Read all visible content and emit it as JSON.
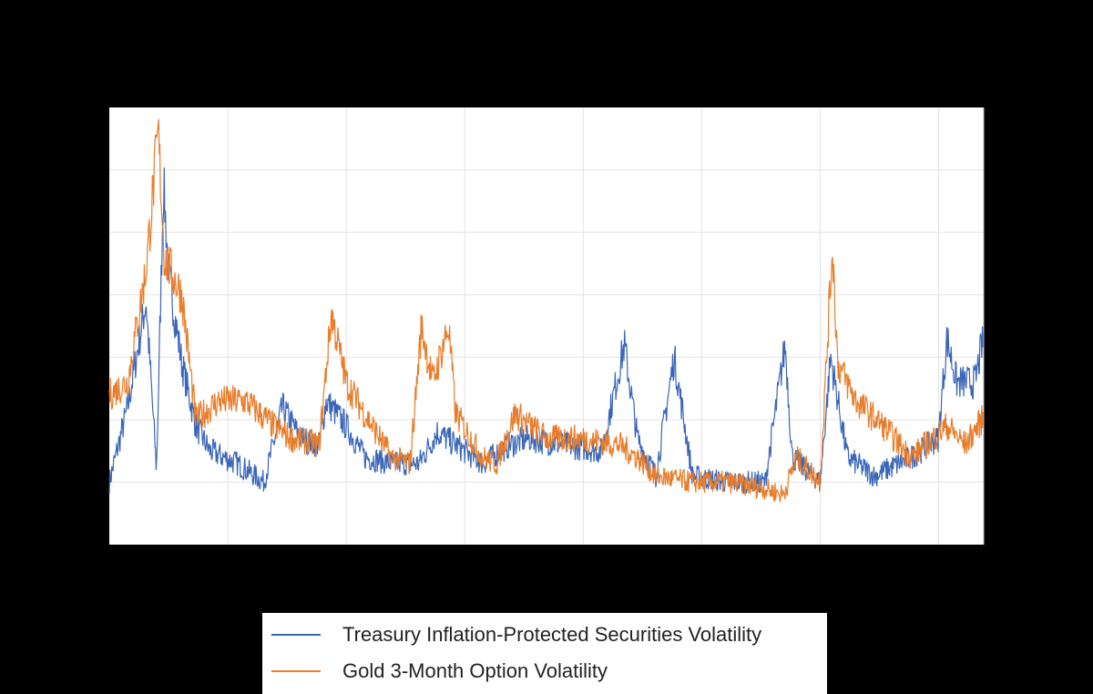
{
  "chart_data": {
    "type": "line",
    "title": "",
    "xlabel": "",
    "ylabel": "",
    "x_units": "percent of period shown",
    "xlim": [
      0,
      100
    ],
    "ylim": [
      0,
      7
    ],
    "grid": true,
    "legend_position": "bottom",
    "series": [
      {
        "name": "Treasury Inflation-Protected Securities Volatility",
        "color": "#3a66b8",
        "x": [
          0,
          2.1,
          4.2,
          5.4,
          6.2,
          6.8,
          8.3,
          9.9,
          11.5,
          14.6,
          17.7,
          19.8,
          21.9,
          24,
          24.8,
          27.1,
          29.2,
          32.3,
          35.4,
          37.5,
          39.6,
          42.7,
          45.8,
          47.9,
          52.1,
          56.3,
          58.9,
          60.4,
          62.5,
          64.6,
          66.7,
          70.8,
          75,
          77.3,
          78.1,
          81.3,
          82.5,
          84.4,
          87.5,
          91.7,
          94.8,
          95.8,
          96.9,
          99,
          99.8
        ],
        "y": [
          1.0,
          2.2,
          3.9,
          1.2,
          5.8,
          4.3,
          2.9,
          1.9,
          1.5,
          1.3,
          1.0,
          2.2,
          1.7,
          1.6,
          2.3,
          1.9,
          1.4,
          1.3,
          1.3,
          1.8,
          1.6,
          1.3,
          1.6,
          1.7,
          1.6,
          1.5,
          3.2,
          1.7,
          1.1,
          3.0,
          1.1,
          1.0,
          1.0,
          3.2,
          1.4,
          1.0,
          3.0,
          1.4,
          1.1,
          1.4,
          1.7,
          3.3,
          2.6,
          2.6,
          3.2
        ]
      },
      {
        "name": "Gold 3-Month Option Volatility",
        "color": "#e87d2b",
        "x": [
          0,
          2.1,
          4.2,
          5.6,
          6.3,
          8.3,
          9.9,
          12.5,
          15.6,
          18.8,
          20.8,
          24,
          25.4,
          27.1,
          29.2,
          32.3,
          34.4,
          35.7,
          37,
          38.8,
          39.6,
          42.7,
          44.3,
          46.4,
          50,
          54.2,
          58.3,
          60.4,
          62.5,
          66.7,
          70.8,
          75,
          77.1,
          78.6,
          81.3,
          82.7,
          83.3,
          85.4,
          88.5,
          91.7,
          95.8,
          97.9,
          99.8
        ],
        "y": [
          2.4,
          2.6,
          4.4,
          6.6,
          4.6,
          4.0,
          2.0,
          2.3,
          2.3,
          1.9,
          1.7,
          1.6,
          3.7,
          2.6,
          2.1,
          1.4,
          1.3,
          3.5,
          2.6,
          3.5,
          2.1,
          1.4,
          1.3,
          2.1,
          1.7,
          1.7,
          1.6,
          1.4,
          1.1,
          1.0,
          1.0,
          0.9,
          0.8,
          1.4,
          1.0,
          4.8,
          2.9,
          2.3,
          1.9,
          1.4,
          1.9,
          1.6,
          2.0
        ]
      }
    ]
  },
  "legend": {
    "items": [
      {
        "label": "Treasury Inflation-Protected Securities Volatility",
        "color": "#3a66b8"
      },
      {
        "label": "Gold 3-Month Option Volatility",
        "color": "#e87d2b"
      }
    ]
  }
}
